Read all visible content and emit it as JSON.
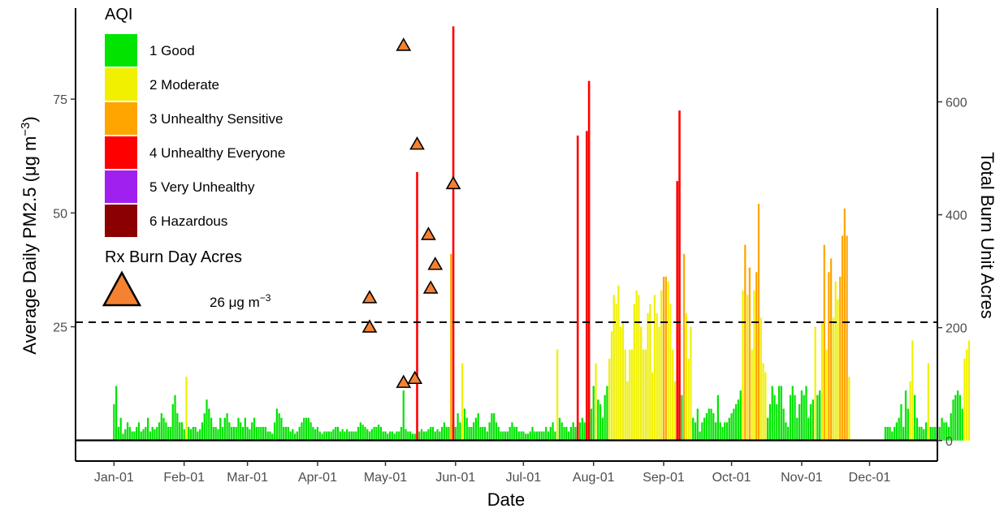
{
  "chart_data": {
    "type": "bar",
    "xlabel": "Date",
    "ylabel_left": "Average Daily PM2.5 (μg m",
    "ylabel_left_exp": "−3",
    "ylabel_left_close": ")",
    "ylabel_right": "Total Burn Unit Acres",
    "x_tick_labels": [
      "Jan-01",
      "Feb-01",
      "Mar-01",
      "Apr-01",
      "May-01",
      "Jun-01",
      "Jul-01",
      "Aug-01",
      "Sep-01",
      "Oct-01",
      "Nov-01",
      "Dec-01"
    ],
    "x_ticks": [
      "2021-01-01",
      "2021-02-01",
      "2021-03-01",
      "2021-04-01",
      "2021-05-01",
      "2021-06-01",
      "2021-07-01",
      "2021-08-01",
      "2021-09-01",
      "2021-10-01",
      "2021-11-01",
      "2021-12-01"
    ],
    "xlim": [
      "2020-12-15",
      "2021-12-31"
    ],
    "y_left_ticks": [
      25,
      50,
      75
    ],
    "ylim_left": [
      -4.5,
      95
    ],
    "y_right_ticks": [
      0,
      200,
      400,
      600
    ],
    "ylim_right": [
      -36.3,
      766
    ],
    "reference_line": {
      "y": 26,
      "label": "26 μg m",
      "label_exp": "−3",
      "style": "dashed"
    },
    "legend": {
      "title": "AQI",
      "entries": [
        {
          "label": "1 Good",
          "color": "#00e400"
        },
        {
          "label": "2 Moderate",
          "color": "#f0f000"
        },
        {
          "label": "3 Unhealthy Sensitive",
          "color": "#ffa500"
        },
        {
          "label": "4 Unhealthy Everyone",
          "color": "#ff0000"
        },
        {
          "label": "5 Very Unhealthy",
          "color": "#a020f0"
        },
        {
          "label": "6 Hazardous",
          "color": "#8b0000"
        }
      ],
      "marker_title": "Rx Burn Day Acres",
      "marker_color": "#f58231"
    },
    "pm25_daily": {
      "start_date": "2021-01-01",
      "values": [
        8,
        12,
        3,
        5,
        1.5,
        2.5,
        4,
        3,
        2,
        2,
        3,
        4,
        2,
        2.5,
        3,
        5,
        2,
        3,
        2.5,
        3,
        4,
        6,
        5,
        4,
        3,
        3,
        8,
        10,
        6,
        4,
        4,
        2.5,
        14,
        3,
        2.5,
        3,
        3,
        2,
        2.5,
        4,
        6,
        9,
        7,
        5,
        3,
        3,
        2.5,
        5,
        3,
        5,
        6,
        4,
        3,
        3,
        3,
        5,
        4,
        3,
        5,
        3,
        2.5,
        4,
        5,
        3,
        3,
        3,
        3,
        3,
        2,
        2,
        1.5,
        4,
        7,
        6,
        5,
        3,
        3,
        3,
        2,
        2.5,
        1.5,
        2,
        3,
        4,
        5,
        5,
        5,
        4,
        3,
        2.5,
        3,
        2,
        1.5,
        2,
        2,
        2,
        2,
        2.5,
        3,
        3,
        2,
        2.5,
        2,
        2.5,
        2,
        2,
        2,
        2,
        3,
        4,
        3.5,
        3,
        2.5,
        2,
        2.5,
        3,
        3,
        3.5,
        3,
        2,
        2,
        1.5,
        2,
        2,
        1.5,
        2,
        2,
        3,
        11,
        2.5,
        2,
        2,
        1.5,
        1.5,
        1.5,
        2,
        2.5,
        2,
        2,
        2.5,
        3,
        3,
        2,
        2.5,
        2,
        3,
        4,
        3,
        3,
        41,
        4,
        3,
        6,
        4,
        17,
        7,
        5,
        3,
        3,
        4,
        5,
        6,
        3,
        3,
        3,
        2,
        4,
        6,
        6,
        4,
        3,
        2,
        2,
        2,
        2,
        3,
        4,
        3,
        3,
        2,
        2,
        2,
        1.5,
        1.5,
        2,
        3,
        2,
        2,
        2,
        2,
        2,
        3,
        2,
        3,
        4,
        2,
        20,
        5,
        4,
        3,
        3,
        2,
        3,
        4,
        3,
        3,
        4,
        5,
        4,
        5,
        4,
        7,
        12,
        17,
        9,
        8,
        5,
        10,
        12,
        18,
        24,
        32,
        30,
        34,
        25,
        26,
        20,
        13,
        20,
        20,
        30,
        33,
        32,
        25,
        20,
        20,
        28,
        30,
        15,
        32,
        28,
        25,
        33,
        36,
        36,
        35,
        30,
        20,
        13,
        20,
        18,
        10,
        41,
        28,
        18,
        25,
        5,
        4,
        7,
        2,
        4,
        5,
        6,
        7,
        7,
        6,
        4,
        10,
        4,
        3,
        4,
        4,
        5,
        6,
        7,
        8,
        9,
        11,
        33,
        43,
        32,
        38,
        20,
        33,
        37,
        52,
        27,
        17,
        15,
        5,
        8,
        12,
        10,
        8,
        12,
        12,
        7,
        4,
        3,
        10,
        12,
        10,
        5,
        8,
        11,
        10,
        12,
        5,
        8,
        9,
        25,
        10,
        11,
        26,
        43,
        20,
        37,
        40,
        27,
        35,
        31,
        36,
        45,
        51,
        45,
        14,
        null,
        null,
        null,
        null,
        null,
        null,
        null,
        null,
        null,
        null,
        null,
        null,
        null,
        null,
        null,
        3,
        3,
        3,
        2,
        3,
        4,
        5,
        8,
        3,
        11,
        7,
        13,
        22,
        10,
        5,
        3,
        3,
        2.5,
        4,
        17,
        3,
        3,
        3,
        3,
        3,
        5,
        4,
        4,
        3,
        6,
        9,
        10,
        11,
        10,
        7,
        18,
        20,
        22,
        null
      ]
    },
    "aq_spikes": [
      {
        "date": "2021-05-15",
        "value": 59
      },
      {
        "date": "2021-05-31",
        "value": 91
      },
      {
        "date": "2021-07-25",
        "value": 67
      },
      {
        "date": "2021-07-29",
        "value": 68
      },
      {
        "date": "2021-07-30",
        "value": 79
      },
      {
        "date": "2021-09-07",
        "value": 57
      },
      {
        "date": "2021-09-08",
        "value": 72.5
      }
    ],
    "burn_acres": [
      {
        "date": "2021-04-24",
        "acres": 253
      },
      {
        "date": "2021-04-24",
        "acres": 201
      },
      {
        "date": "2021-05-09",
        "acres": 700
      },
      {
        "date": "2021-05-09",
        "acres": 103
      },
      {
        "date": "2021-05-15",
        "acres": 525
      },
      {
        "date": "2021-05-14",
        "acres": 110
      },
      {
        "date": "2021-05-20",
        "acres": 365
      },
      {
        "date": "2021-05-21",
        "acres": 270
      },
      {
        "date": "2021-05-23",
        "acres": 312
      },
      {
        "date": "2021-05-31",
        "acres": 455
      }
    ]
  }
}
